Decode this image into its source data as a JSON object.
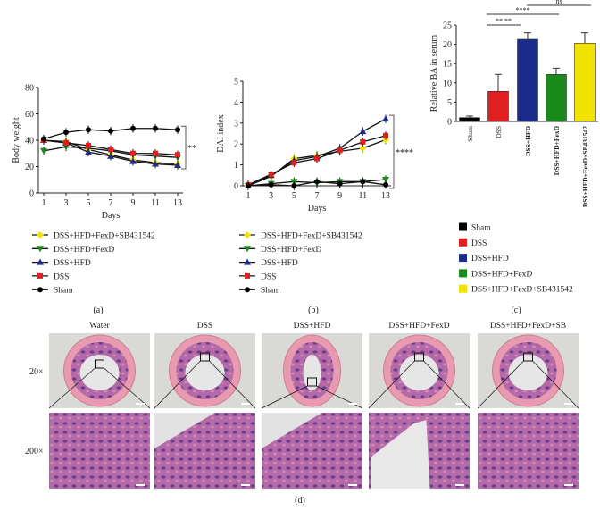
{
  "chart_data": [
    {
      "type": "line",
      "panel": "(a)",
      "xlabel": "Days",
      "ylabel": "Body weight",
      "x": [
        1,
        3,
        5,
        7,
        9,
        11,
        13
      ],
      "ylim": [
        0,
        80
      ],
      "yticks": [
        0,
        20,
        40,
        60,
        80
      ],
      "annotation": "**",
      "series": [
        {
          "name": "DSS+HFD+FexD+SB431542",
          "color": "#f2e200",
          "marker": "diamond",
          "values": [
            40,
            39,
            33,
            29,
            25,
            23,
            22
          ]
        },
        {
          "name": "DSS+HFD+FexD",
          "color": "#1a8a1a",
          "marker": "triangle-down",
          "values": [
            32,
            35,
            34,
            32,
            29,
            28,
            27
          ]
        },
        {
          "name": "DSS+HFD",
          "color": "#1c2c8a",
          "marker": "triangle-up",
          "values": [
            40,
            38,
            31,
            28,
            24,
            22,
            21
          ]
        },
        {
          "name": "DSS",
          "color": "#e02020",
          "marker": "square",
          "values": [
            40,
            38,
            36,
            33,
            30,
            30,
            29
          ]
        },
        {
          "name": "Sham",
          "color": "#000000",
          "marker": "circle",
          "values": [
            41,
            46,
            48,
            47,
            49,
            49,
            48
          ]
        }
      ]
    },
    {
      "type": "line",
      "panel": "(b)",
      "xlabel": "Days",
      "ylabel": "DAI index",
      "x": [
        1,
        3,
        5,
        7,
        9,
        11,
        13
      ],
      "ylim": [
        0,
        5
      ],
      "yticks": [
        0,
        1,
        2,
        3,
        4,
        5
      ],
      "annotation": "****",
      "series": [
        {
          "name": "DSS+HFD+FexD+SB431542",
          "color": "#f2e200",
          "marker": "diamond",
          "values": [
            0,
            0.45,
            1.3,
            1.45,
            1.65,
            1.8,
            2.2
          ]
        },
        {
          "name": "DSS+HFD+FexD",
          "color": "#1a8a1a",
          "marker": "triangle-down",
          "values": [
            0,
            0.1,
            0.2,
            0.15,
            0.2,
            0.2,
            0.3
          ]
        },
        {
          "name": "DSS+HFD",
          "color": "#1c2c8a",
          "marker": "triangle-up",
          "values": [
            0,
            0.5,
            1.2,
            1.4,
            1.8,
            2.6,
            3.2
          ]
        },
        {
          "name": "DSS",
          "color": "#e02020",
          "marker": "square",
          "values": [
            0.05,
            0.55,
            1.1,
            1.3,
            1.7,
            2.1,
            2.4
          ]
        },
        {
          "name": "Sham",
          "color": "#000000",
          "marker": "circle",
          "values": [
            0,
            0.05,
            0,
            0.2,
            0.1,
            0.2,
            0.05
          ]
        }
      ]
    },
    {
      "type": "bar",
      "panel": "(c)",
      "ylabel": "Relative BA in serum",
      "ylim": [
        0,
        25
      ],
      "yticks": [
        0,
        5,
        10,
        15,
        20,
        25
      ],
      "categories": [
        "Sham",
        "DSS",
        "DSS+HFD",
        "DSS+HFD+FexD",
        "DSS+HFD+FexD+SB431542"
      ],
      "values": [
        1.0,
        7.8,
        21.3,
        12.2,
        20.3
      ],
      "errors": [
        0.4,
        4.4,
        1.7,
        1.6,
        2.7
      ],
      "colors": [
        "#000000",
        "#e02020",
        "#1c2c8a",
        "#1a8a1a",
        "#f2e200"
      ],
      "significance": [
        "** **",
        "****",
        "ns"
      ]
    }
  ],
  "captions": {
    "a": "(a)",
    "b": "(b)",
    "c": "(c)",
    "d": "(d)"
  },
  "histology": {
    "columns": [
      "Water",
      "DSS",
      "DSS+HFD",
      "DSS+HFD+FexD",
      "DSS+HFD+FexD+SB"
    ],
    "rows": [
      "20×",
      "200×"
    ]
  }
}
